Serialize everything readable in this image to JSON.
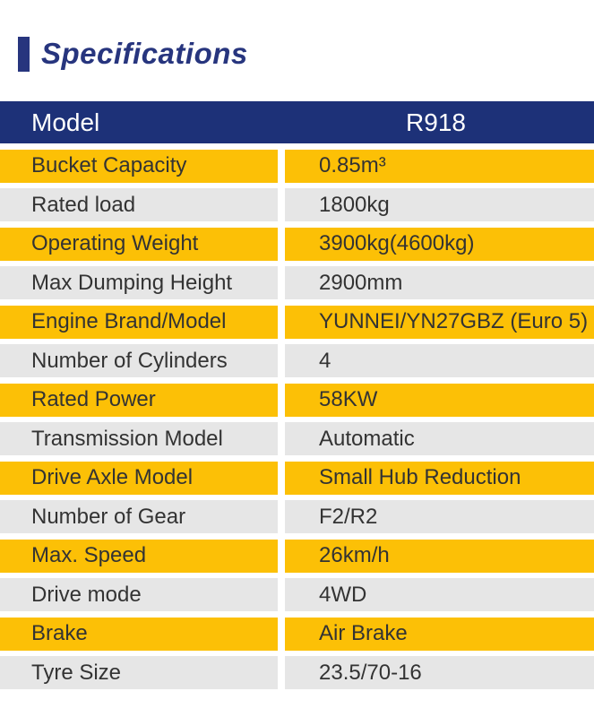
{
  "header": {
    "title": "Specifications",
    "accent_color": "#27357e"
  },
  "table": {
    "colors": {
      "header_bg": "#1d3178",
      "header_text": "#ffffff",
      "row_yellow": "#fcc006",
      "row_gray": "#e6e6e6",
      "row_text": "#333333"
    },
    "header": {
      "label": "Model",
      "value": "R918"
    },
    "rows": [
      {
        "label": "Bucket Capacity",
        "value": "0.85m³"
      },
      {
        "label": "Rated load",
        "value": "1800kg"
      },
      {
        "label": "Operating Weight",
        "value": "3900kg(4600kg)"
      },
      {
        "label": "Max Dumping Height",
        "value": "2900mm"
      },
      {
        "label": "Engine Brand/Model",
        "value": "YUNNEI/YN27GBZ (Euro 5)"
      },
      {
        "label": "Number of Cylinders",
        "value": "4"
      },
      {
        "label": "Rated Power",
        "value": "58KW"
      },
      {
        "label": "Transmission Model",
        "value": "Automatic"
      },
      {
        "label": "Drive Axle Model",
        "value": "Small Hub Reduction"
      },
      {
        "label": "Number of Gear",
        "value": "F2/R2"
      },
      {
        "label": "Max. Speed",
        "value": "26km/h"
      },
      {
        "label": "Drive mode",
        "value": "4WD"
      },
      {
        "label": "Brake",
        "value": "Air Brake"
      },
      {
        "label": "Tyre Size",
        "value": "23.5/70-16"
      }
    ]
  }
}
